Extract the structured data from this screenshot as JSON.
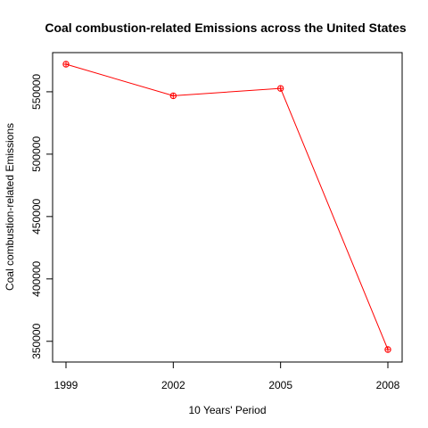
{
  "chart_data": {
    "type": "line",
    "title": "Coal combustion-related Emissions across the United States",
    "xlabel": "10 Years' Period",
    "ylabel": "Coal combustion-related Emissions",
    "categories": [
      "1999",
      "2002",
      "2005",
      "2008"
    ],
    "values": [
      572100,
      546800,
      552700,
      343400
    ],
    "yticks": [
      350000,
      400000,
      450000,
      500000,
      550000
    ],
    "ytick_labels": [
      "350000",
      "400000",
      "450000",
      "500000",
      "550000"
    ],
    "ylim": [
      335000,
      580000
    ],
    "grid": false,
    "legend": "none",
    "series_color": "#ff0000",
    "marker": "circle-plus"
  }
}
